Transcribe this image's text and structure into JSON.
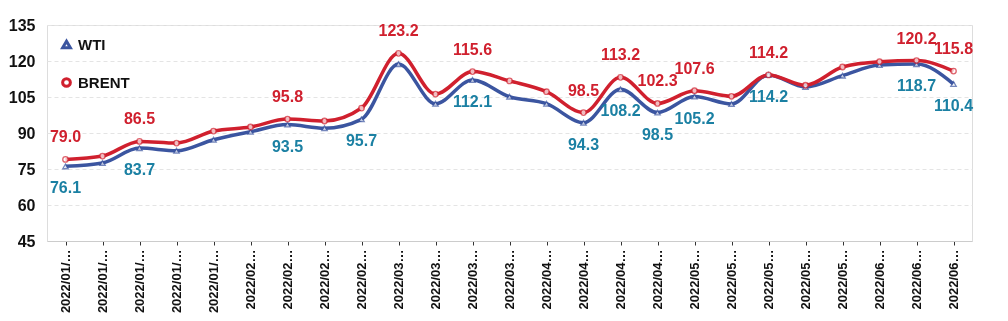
{
  "chart_data": {
    "type": "line",
    "categories": [
      "2022/01/…",
      "2022/01/…",
      "2022/01/…",
      "2022/01/…",
      "2022/01/…",
      "2022/02…",
      "2022/02…",
      "2022/02…",
      "2022/02…",
      "2022/03…",
      "2022/03…",
      "2022/03…",
      "2022/03…",
      "2022/04…",
      "2022/04…",
      "2022/04…",
      "2022/04…",
      "2022/05…",
      "2022/05…",
      "2022/05…",
      "2022/05…",
      "2022/05…",
      "2022/06…",
      "2022/06…",
      "2022/06…"
    ],
    "series": [
      {
        "name": "WTI",
        "color": "#3b55a0",
        "marker": "triangle",
        "values": [
          76.1,
          77.5,
          83.7,
          82.6,
          87.2,
          90.5,
          93.5,
          92.0,
          95.7,
          118.7,
          102.2,
          112.1,
          105.1,
          102.2,
          94.3,
          108.2,
          98.5,
          105.2,
          102.1,
          114.2,
          109.2,
          113.9,
          118.3,
          118.7,
          110.4
        ],
        "value_labels": [
          "76.1",
          null,
          "83.7",
          null,
          null,
          null,
          "93.5",
          null,
          "95.7",
          null,
          null,
          "112.1",
          null,
          null,
          "94.3",
          "108.2",
          "98.5",
          "105.2",
          null,
          "114.2",
          null,
          null,
          null,
          "118.7",
          "110.4"
        ]
      },
      {
        "name": "BRENT",
        "color": "#d0202e",
        "marker": "circle",
        "values": [
          79.0,
          80.4,
          86.5,
          85.8,
          90.8,
          92.5,
          95.8,
          95.0,
          100.4,
          123.2,
          106.2,
          115.6,
          111.7,
          107.2,
          98.5,
          113.2,
          102.3,
          107.6,
          105.3,
          114.2,
          109.9,
          117.5,
          119.7,
          120.2,
          115.8
        ],
        "value_labels": [
          "79.0",
          null,
          "86.5",
          null,
          null,
          null,
          "95.8",
          null,
          null,
          "123.2",
          null,
          "115.6",
          null,
          null,
          "98.5",
          "113.2",
          "102.3",
          "107.6",
          null,
          "114.2",
          null,
          null,
          null,
          "120.2",
          "115.8"
        ]
      }
    ],
    "ylim": [
      45,
      135
    ],
    "yticks": [
      45,
      60,
      75,
      90,
      105,
      120,
      135
    ],
    "grid": "y",
    "legend": "top left",
    "line_style": "solid"
  }
}
